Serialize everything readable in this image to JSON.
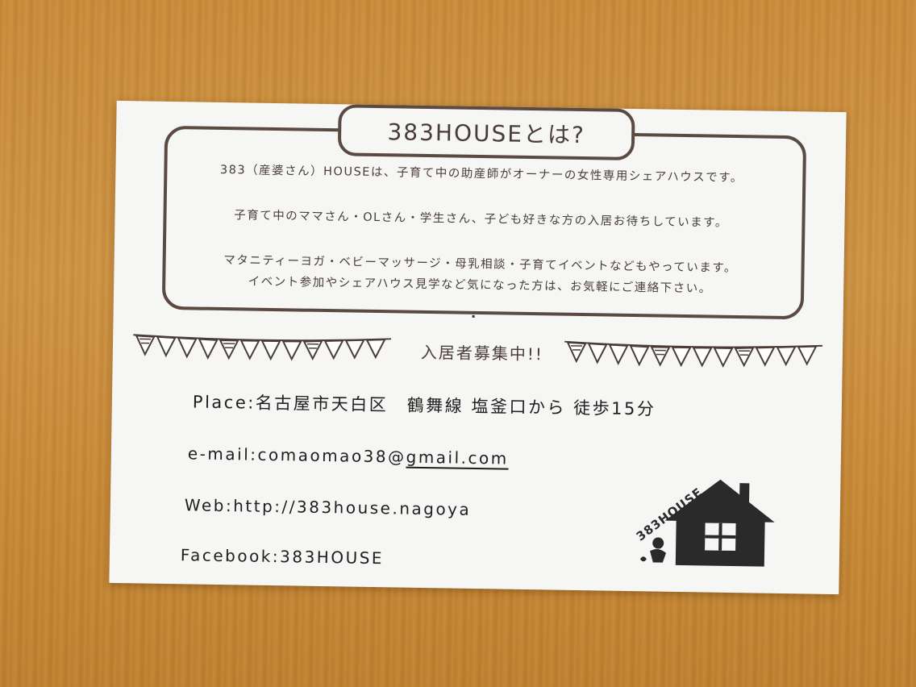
{
  "card": {
    "title": "383HOUSEとは?",
    "intro_lines": [
      "383（産婆さん）HOUSEは、子育て中の助産師がオーナーの女性専用シェアハウスです。",
      "子育て中のママさん・OLさん・学生さん、子ども好きな方の入居お待ちしています。",
      "マタニティーヨガ・ベビーマッサージ・母乳相談・子育てイベントなどもやっています。",
      "イベント参加やシェアハウス見学など気になった方は、お気軽にご連絡下さい。"
    ],
    "recruit_banner": "入居者募集中!!",
    "place": "Place:名古屋市天白区　鶴舞線 塩釜口から 徒歩15分",
    "email_prefix": "e-mail:comaomao38@",
    "email_domain": "gmail.com",
    "web": "Web:http://383house.nagoya",
    "facebook": "Facebook:383HOUSE",
    "logo_text": "383HOUSE"
  },
  "colors": {
    "ink": "#4a3d38",
    "border": "#5a4a42",
    "card": "#f6f6f4",
    "table_wood": "#c98d3c",
    "logo": "#2a2a2a"
  }
}
